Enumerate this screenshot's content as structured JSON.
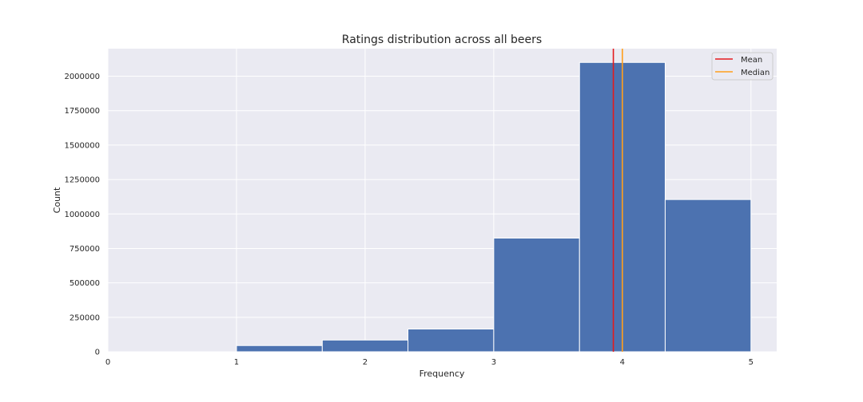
{
  "chart_data": {
    "type": "bar",
    "title": "Ratings distribution across all beers",
    "xlabel": "Frequency",
    "ylabel": "Count",
    "xlim": [
      0,
      5.2
    ],
    "ylim": [
      0,
      2200000
    ],
    "xticks": [
      0,
      1,
      2,
      3,
      4,
      5
    ],
    "yticks": [
      0,
      250000,
      500000,
      750000,
      1000000,
      1250000,
      1500000,
      1750000,
      2000000
    ],
    "bins": [
      {
        "x0": 1.0,
        "x1": 1.667,
        "count": 45000
      },
      {
        "x0": 1.667,
        "x1": 2.333,
        "count": 85000
      },
      {
        "x0": 2.333,
        "x1": 3.0,
        "count": 165000
      },
      {
        "x0": 3.0,
        "x1": 3.667,
        "count": 825000
      },
      {
        "x0": 3.667,
        "x1": 4.333,
        "count": 2100000
      },
      {
        "x0": 4.333,
        "x1": 5.0,
        "count": 1105000
      }
    ],
    "vlines": [
      {
        "name": "Mean",
        "x": 3.93,
        "color": "#e41a1c"
      },
      {
        "name": "Median",
        "x": 4.0,
        "color": "#ff9f1c"
      }
    ],
    "bar_color": "#4c72b0",
    "background_color": "#eaeaf2",
    "grid": true,
    "legend_position": "top-right"
  }
}
